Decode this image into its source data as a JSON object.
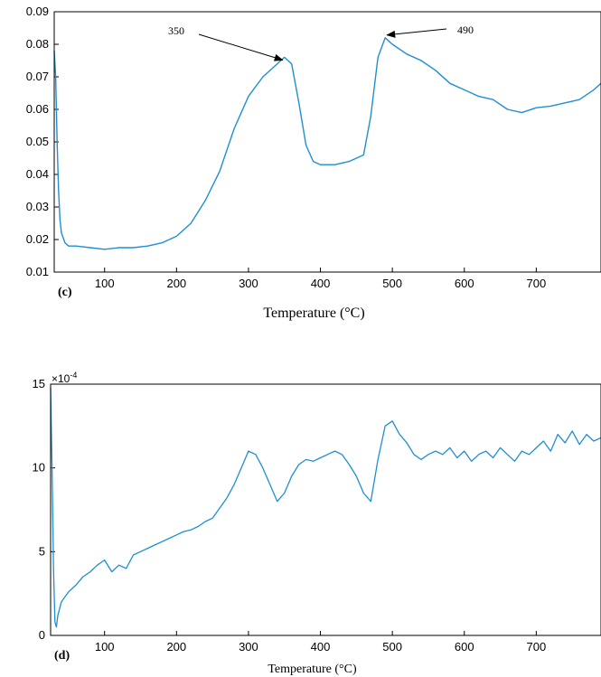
{
  "chart_data": [
    {
      "type": "line",
      "panel_label": "(c)",
      "xlabel": "Temperature (°C)",
      "ylabel": "",
      "xlim": [
        30,
        790
      ],
      "ylim": [
        0.01,
        0.09
      ],
      "xticks": [
        100,
        200,
        300,
        400,
        500,
        600,
        700
      ],
      "xtick_labels": [
        "100",
        "200",
        "300",
        "400",
        "500",
        "600",
        "700"
      ],
      "yticks": [
        0.01,
        0.02,
        0.03,
        0.04,
        0.05,
        0.06,
        0.07,
        0.08,
        0.09
      ],
      "ytick_labels": [
        "0.01",
        "0.02",
        "0.03",
        "0.04",
        "0.05",
        "0.06",
        "0.07",
        "0.08",
        "0.09"
      ],
      "grid": false,
      "line_color": "#1f8fd1",
      "annotations": [
        {
          "text": "350",
          "x": 350,
          "y": 0.076
        },
        {
          "text": "490",
          "x": 490,
          "y": 0.082
        }
      ],
      "series": [
        {
          "x": [
            30,
            32,
            34,
            36,
            38,
            40,
            45,
            50,
            60,
            80,
            100,
            120,
            140,
            160,
            180,
            200,
            220,
            240,
            260,
            280,
            300,
            320,
            340,
            350,
            360,
            370,
            380,
            390,
            400,
            420,
            440,
            460,
            470,
            480,
            490,
            500,
            520,
            540,
            560,
            580,
            600,
            620,
            640,
            660,
            680,
            700,
            720,
            740,
            760,
            780,
            790
          ],
          "y": [
            0.078,
            0.07,
            0.05,
            0.035,
            0.026,
            0.022,
            0.019,
            0.018,
            0.018,
            0.0175,
            0.017,
            0.0175,
            0.0175,
            0.018,
            0.019,
            0.021,
            0.025,
            0.032,
            0.041,
            0.054,
            0.064,
            0.07,
            0.074,
            0.076,
            0.074,
            0.062,
            0.049,
            0.044,
            0.043,
            0.043,
            0.044,
            0.046,
            0.058,
            0.076,
            0.082,
            0.08,
            0.077,
            0.075,
            0.072,
            0.068,
            0.066,
            0.064,
            0.063,
            0.06,
            0.059,
            0.0605,
            0.061,
            0.062,
            0.063,
            0.066,
            0.068
          ]
        }
      ]
    },
    {
      "type": "line",
      "panel_label": "(d)",
      "xlabel": "Temperature (°C)",
      "ylabel": "",
      "multiplier": "×10",
      "multiplier_exp": "-4",
      "xlim": [
        25,
        790
      ],
      "ylim": [
        0,
        15
      ],
      "xticks": [
        100,
        200,
        300,
        400,
        500,
        600,
        700
      ],
      "xtick_labels": [
        "100",
        "200",
        "300",
        "400",
        "500",
        "600",
        "700"
      ],
      "yticks": [
        0,
        5,
        10,
        15
      ],
      "ytick_labels": [
        "0",
        "5",
        "10",
        "15"
      ],
      "grid": false,
      "line_color": "#1f8fd1",
      "series": [
        {
          "x": [
            25,
            27,
            29,
            31,
            33,
            35,
            40,
            50,
            60,
            70,
            80,
            90,
            100,
            110,
            120,
            130,
            140,
            150,
            160,
            170,
            180,
            190,
            200,
            210,
            220,
            230,
            240,
            250,
            260,
            270,
            280,
            290,
            300,
            310,
            320,
            330,
            340,
            350,
            360,
            370,
            380,
            390,
            400,
            410,
            420,
            430,
            440,
            450,
            460,
            470,
            480,
            490,
            500,
            510,
            520,
            530,
            540,
            550,
            560,
            570,
            580,
            590,
            600,
            610,
            620,
            630,
            640,
            650,
            660,
            670,
            680,
            690,
            700,
            710,
            720,
            730,
            740,
            750,
            760,
            770,
            780,
            790
          ],
          "y": [
            14.8,
            10,
            4,
            0.8,
            0.5,
            1.2,
            2.0,
            2.6,
            3.0,
            3.5,
            3.8,
            4.2,
            4.5,
            3.8,
            4.2,
            4.0,
            4.8,
            5.0,
            5.2,
            5.4,
            5.6,
            5.8,
            6.0,
            6.2,
            6.3,
            6.5,
            6.8,
            7.0,
            7.6,
            8.2,
            9.0,
            10.0,
            11.0,
            10.8,
            10.0,
            9.0,
            8.0,
            8.5,
            9.5,
            10.2,
            10.5,
            10.4,
            10.6,
            10.8,
            11.0,
            10.8,
            10.2,
            9.5,
            8.5,
            8.0,
            10.5,
            12.5,
            12.8,
            12.0,
            11.5,
            10.8,
            10.5,
            10.8,
            11.0,
            10.8,
            11.2,
            10.6,
            11.0,
            10.4,
            10.8,
            11.0,
            10.6,
            11.2,
            10.8,
            10.4,
            11.0,
            10.8,
            11.2,
            11.6,
            11.0,
            12.0,
            11.5,
            12.2,
            11.4,
            12.0,
            11.6,
            11.8
          ]
        }
      ]
    }
  ]
}
